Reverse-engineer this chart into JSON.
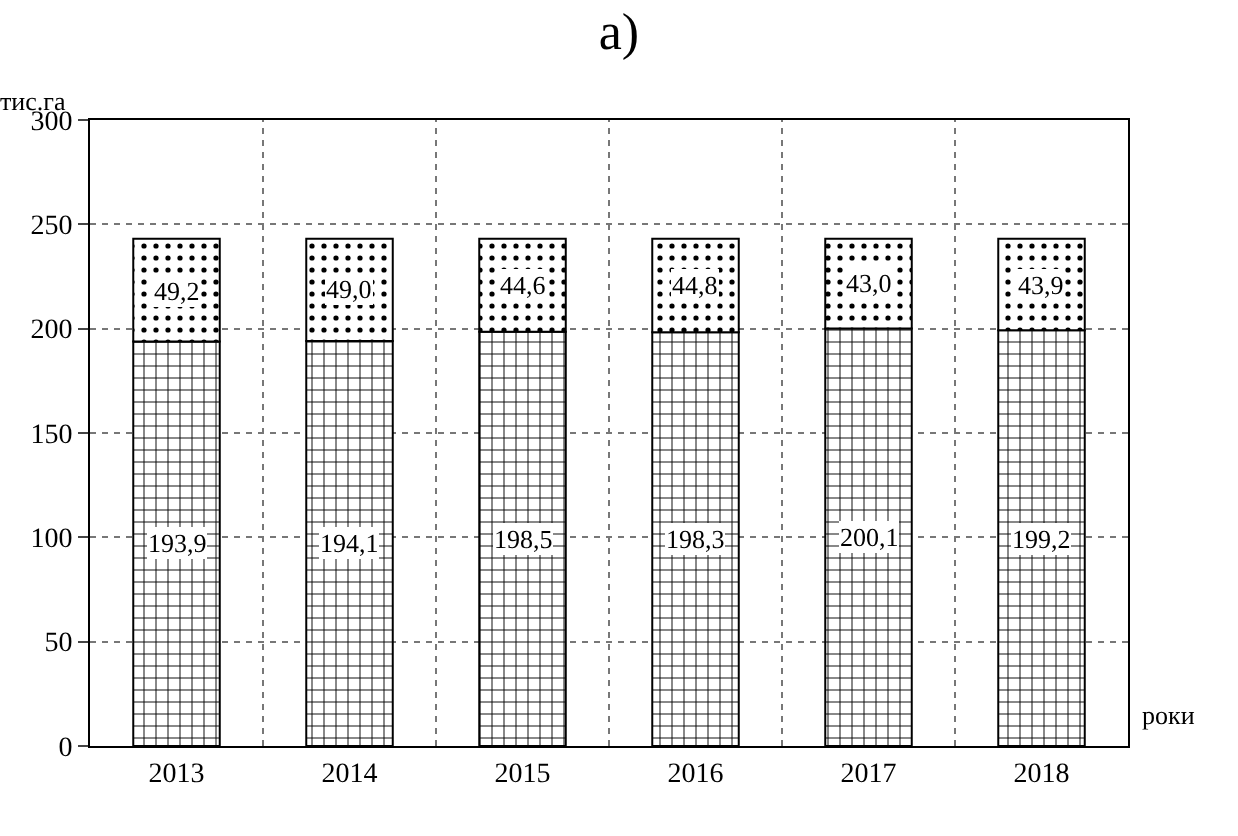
{
  "chart_data": {
    "type": "bar",
    "stacked": true,
    "title": "a)",
    "xlabel": "роки",
    "ylabel": "тис.га",
    "categories": [
      "2013",
      "2014",
      "2015",
      "2016",
      "2017",
      "2018"
    ],
    "series": [
      {
        "color": "#000000",
        "values": [
          193.9,
          194.1,
          198.5,
          198.3,
          200.1,
          199.2
        ],
        "value_labels": [
          "193,9",
          "194,1",
          "198,5",
          "198,3",
          "200,1",
          "199,2"
        ]
      },
      {
        "color": "#000000",
        "values": [
          49.2,
          49.0,
          44.6,
          44.8,
          43.0,
          43.9
        ],
        "value_labels": [
          "49,2",
          "49,0",
          "44,6",
          "44,8",
          "43,0",
          "43,9"
        ]
      }
    ],
    "ylim": [
      0,
      300
    ],
    "yticks": [
      0,
      50,
      100,
      150,
      200,
      250,
      300
    ],
    "grid": true
  }
}
